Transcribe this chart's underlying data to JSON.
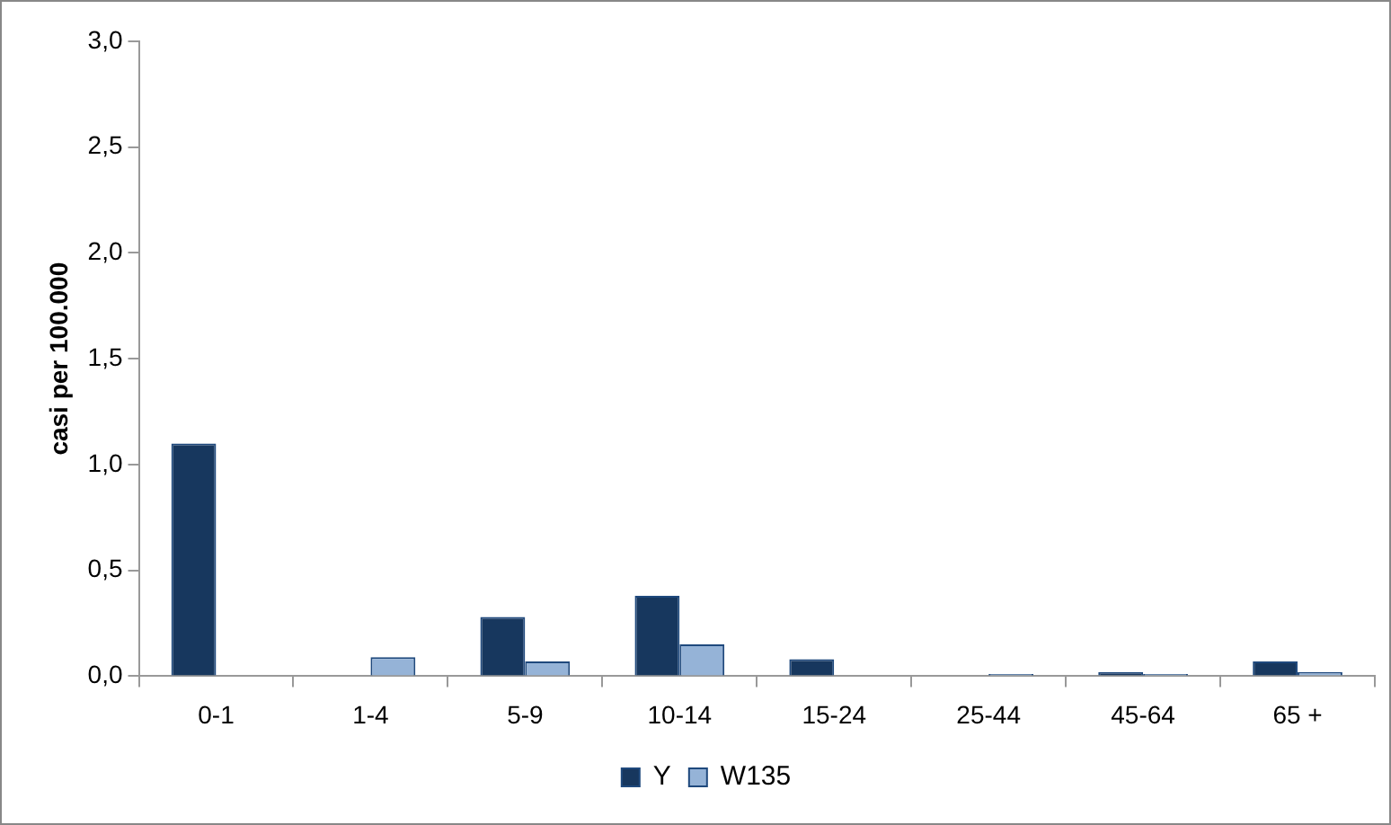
{
  "chart_data": {
    "type": "bar",
    "ylabel": "casi per 100.000",
    "categories": [
      "0-1",
      "1-4",
      "5-9",
      "10-14",
      "15-24",
      "25-44",
      "45-64",
      "65 +"
    ],
    "series": [
      {
        "name": "Y",
        "color": "#17375e",
        "values": [
          1.1,
          0,
          0.28,
          0.38,
          0.08,
          0,
          0.02,
          0.07
        ]
      },
      {
        "name": "W135",
        "color": "#95b3d7",
        "values": [
          0,
          0.09,
          0.07,
          0.15,
          0,
          0.01,
          0.01,
          0.02
        ]
      }
    ],
    "ylim": [
      0,
      3
    ],
    "yticks": [
      {
        "value": 0,
        "label": "0,0"
      },
      {
        "value": 0.5,
        "label": "0,5"
      },
      {
        "value": 1,
        "label": "1,0"
      },
      {
        "value": 1.5,
        "label": "1,5"
      },
      {
        "value": 2,
        "label": "2,0"
      },
      {
        "value": 2.5,
        "label": "2,5"
      },
      {
        "value": 3,
        "label": "3,0"
      }
    ],
    "grid": false,
    "legend": "bottom"
  }
}
